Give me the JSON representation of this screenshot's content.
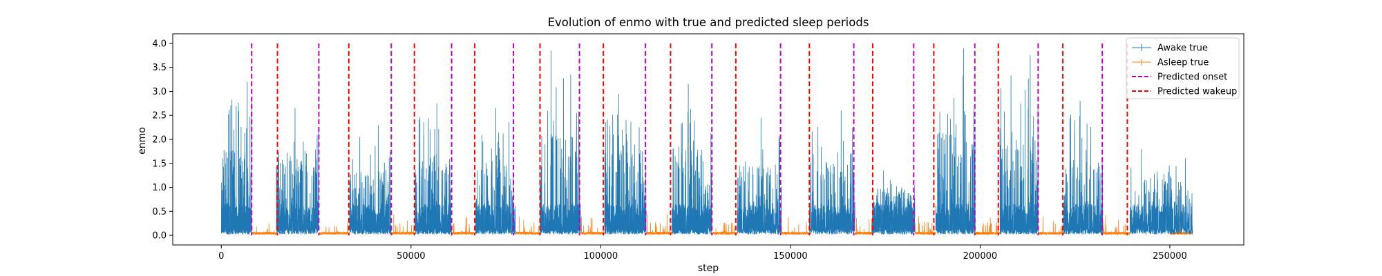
{
  "chart_data": {
    "type": "line",
    "title": "Evolution of enmo with true and predicted sleep periods",
    "xlabel": "step",
    "ylabel": "enmo",
    "xlim": [
      -12800,
      269500
    ],
    "ylim": [
      -0.2,
      4.2
    ],
    "xticks": [
      0,
      50000,
      100000,
      150000,
      200000,
      250000
    ],
    "xtick_labels": [
      "0",
      "50000",
      "100000",
      "150000",
      "200000",
      "250000"
    ],
    "yticks": [
      0.0,
      0.5,
      1.0,
      1.5,
      2.0,
      2.5,
      3.0,
      3.5,
      4.0
    ],
    "ytick_labels": [
      "0.0",
      "0.5",
      "1.0",
      "1.5",
      "2.0",
      "2.5",
      "3.0",
      "3.5",
      "4.0"
    ],
    "grid": false,
    "legend_position": "top-right",
    "legend": [
      "Awake true",
      "Asleep true",
      "Predicted onset",
      "Predicted wakeup"
    ],
    "colors": {
      "awake": "#1f77b4",
      "asleep": "#ff7f0e",
      "onset": "#bf00bf",
      "wakeup": "#ff0000"
    },
    "series": [
      {
        "name": "Awake true",
        "segments": [
          [
            0,
            8000
          ],
          [
            14500,
            25700
          ],
          [
            33800,
            44800
          ],
          [
            51000,
            60700
          ],
          [
            67000,
            77500
          ],
          [
            84000,
            94700
          ],
          [
            101000,
            112000
          ],
          [
            118800,
            129300
          ],
          [
            136000,
            147600
          ],
          [
            155000,
            167000
          ],
          [
            171500,
            182800
          ],
          [
            188300,
            198700
          ],
          [
            205200,
            215300
          ],
          [
            222000,
            232300
          ],
          [
            239500,
            256000
          ]
        ],
        "peaks": [
          3.2,
          2.65,
          2.3,
          2.75,
          2.65,
          3.85,
          2.95,
          3.15,
          2.45,
          2.6,
          1.35,
          3.9,
          3.75,
          2.8,
          1.8
        ]
      },
      {
        "name": "Asleep true",
        "segments": [
          [
            8000,
            14500
          ],
          [
            25700,
            33800
          ],
          [
            44800,
            51000
          ],
          [
            60700,
            67000
          ],
          [
            77500,
            84000
          ],
          [
            94700,
            101000
          ],
          [
            112000,
            118800
          ],
          [
            129300,
            136000
          ],
          [
            147600,
            155000
          ],
          [
            167000,
            171500
          ],
          [
            182800,
            188300
          ],
          [
            198700,
            205200
          ],
          [
            215300,
            222000
          ],
          [
            232300,
            239500
          ],
          [
            250000,
            256000
          ]
        ],
        "typical_value": 0.05,
        "max_value": 0.45
      }
    ],
    "predicted_onset": [
      8000,
      25700,
      44800,
      60700,
      77000,
      94400,
      111800,
      129300,
      147400,
      166700,
      182500,
      198600,
      215300,
      232200
    ],
    "predicted_wakeup": [
      14800,
      33600,
      50900,
      66800,
      84000,
      100700,
      118400,
      135600,
      155000,
      171700,
      187800,
      204800,
      221800,
      238800
    ]
  }
}
